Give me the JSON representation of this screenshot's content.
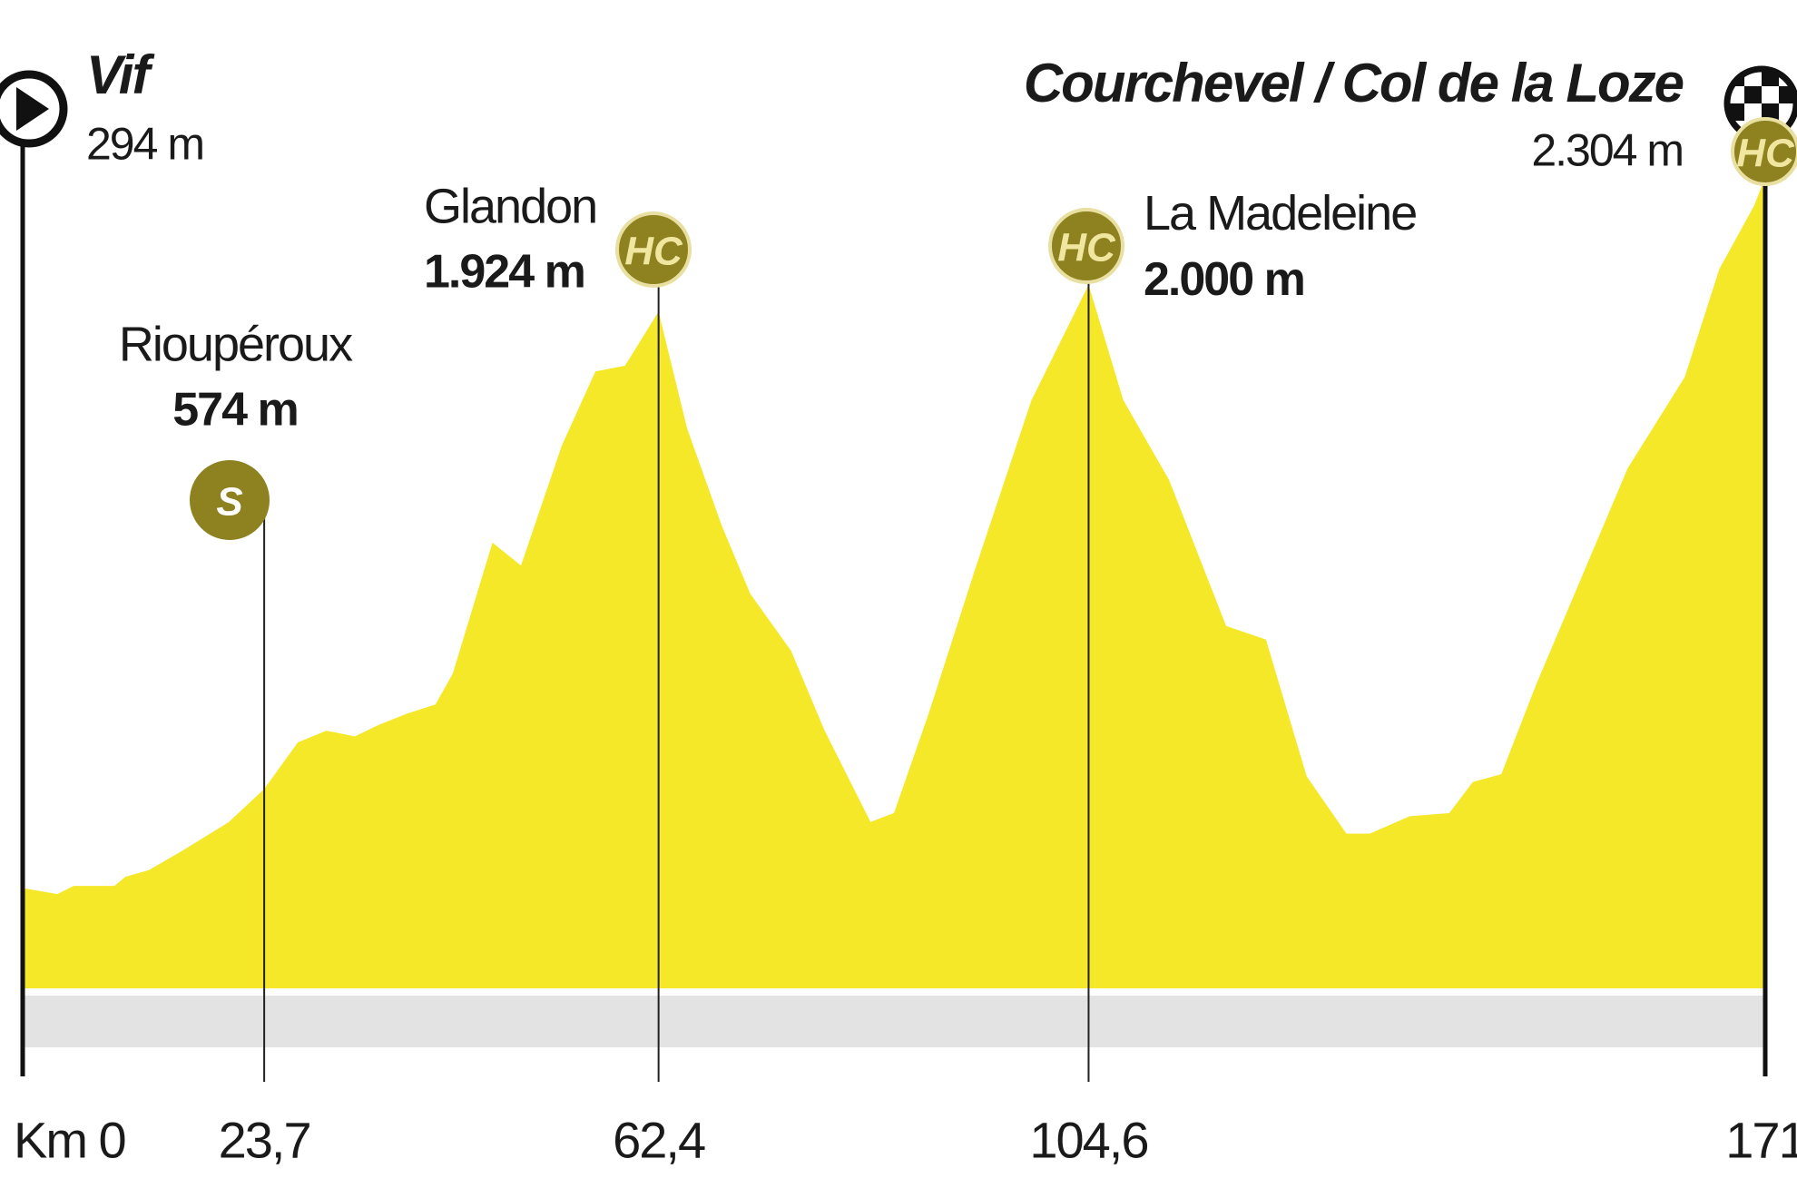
{
  "chart_data": {
    "type": "area",
    "color": "#f5e829",
    "x": [
      0,
      3.4,
      5,
      9,
      10.1,
      12.4,
      15.7,
      20.2,
      23.7,
      27,
      29.8,
      32.6,
      34.9,
      37.7,
      40.5,
      42.2,
      46.1,
      48.9,
      52.9,
      56.2,
      59.1,
      62.4,
      65.2,
      68.6,
      71.4,
      75.4,
      78.7,
      83.2,
      85.5,
      88.9,
      93.4,
      99,
      104.6,
      108,
      112.5,
      118.1,
      122,
      126,
      129.9,
      132.2,
      136.1,
      140,
      142.3,
      145.1,
      148.5,
      157.5,
      163.1,
      166.5,
      169.9,
      171
    ],
    "values": [
      294,
      277,
      300,
      300,
      326,
      345,
      400,
      480,
      574,
      706,
      739,
      723,
      755,
      787,
      813,
      900,
      1271,
      1206,
      1545,
      1755,
      1771,
      1924,
      1594,
      1319,
      1126,
      965,
      739,
      481,
      506,
      787,
      1190,
      1674,
      2000,
      1674,
      1448,
      1035,
      997,
      610,
      448,
      448,
      497,
      506,
      594,
      616,
      868,
      1481,
      1739,
      2045,
      2223,
      2304
    ],
    "xlim": [
      0,
      171
    ],
    "ylim": [
      0,
      2500
    ],
    "xticks": [
      {
        "value": 0,
        "label": "Km 0"
      },
      {
        "value": 23.7,
        "label": "23,7"
      },
      {
        "value": 62.4,
        "label": "62,4"
      },
      {
        "value": 104.6,
        "label": "104,6"
      },
      171
    ],
    "annotations": [
      {
        "name": "Vif",
        "x": 0,
        "elevation": 294,
        "elevation_label": "294 m"
      },
      {
        "name": "Rioupéroux",
        "x": 23.7,
        "elevation": 574,
        "elevation_label": "574 m",
        "badge": "S"
      },
      {
        "name": "Glandon",
        "x": 62.4,
        "elevation": 1924,
        "elevation_label": "1.924 m",
        "badge": "HC"
      },
      {
        "name": "La Madeleine",
        "x": 104.6,
        "elevation": 2000,
        "elevation_label": "2.000 m",
        "badge": "HC"
      },
      {
        "name": "Courchevel / Col de la Loze",
        "x": 171,
        "elevation": 2304,
        "elevation_label": "2.304 m",
        "badge": "HC"
      }
    ]
  }
}
